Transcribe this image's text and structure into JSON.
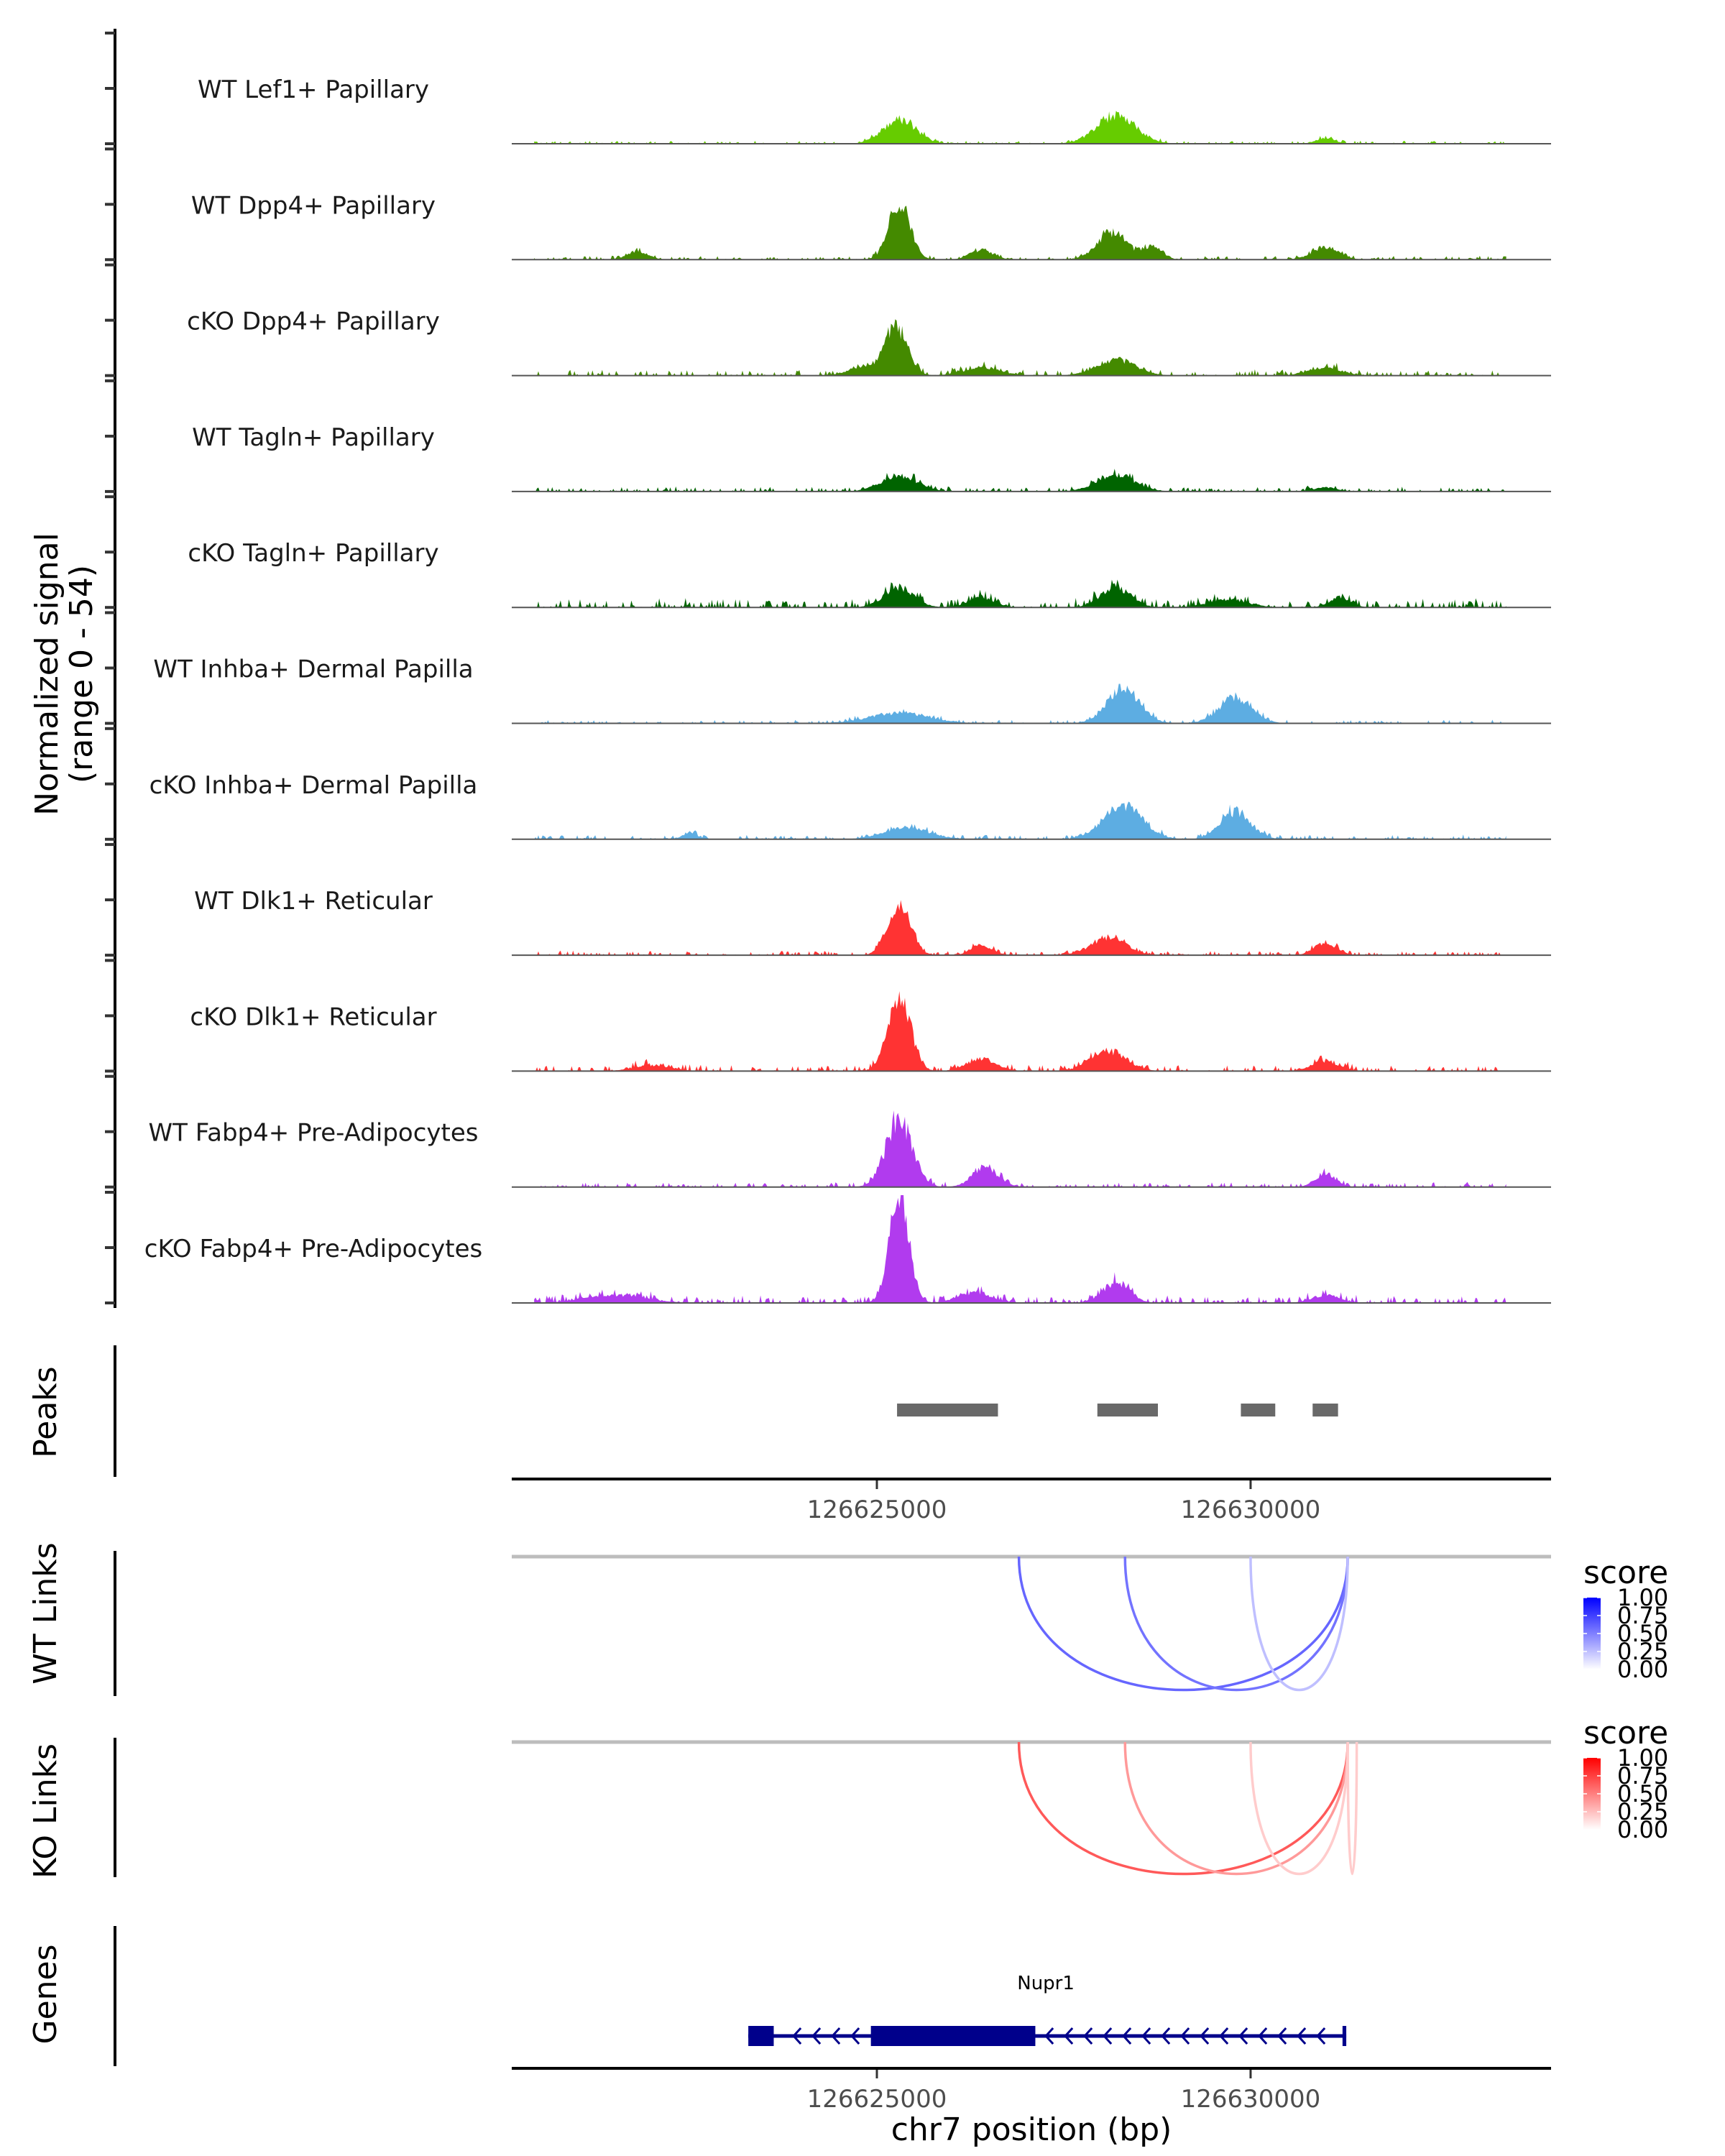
{
  "chart_data": {
    "type": "area",
    "title": "",
    "region": {
      "chrom": "chr7",
      "start": 126620115,
      "end": 126634020
    },
    "xlabel": "chr7 position (bp)",
    "x_ticks": [
      126625000,
      126630000
    ],
    "x_tick_labels": [
      "126625000",
      "126630000"
    ],
    "coverage": {
      "ylabel_line1": "Normalized signal",
      "ylabel_line2": "(range 0 - 54)",
      "ylim": [
        0,
        54
      ],
      "tracks": [
        {
          "name": "WT Lef1+ Papillary",
          "color": "#66CC00",
          "peaks": [
            [
              126625300,
              12,
              220
            ],
            [
              126628200,
              14,
              260
            ],
            [
              126631000,
              3,
              120
            ]
          ],
          "noise": 0.6
        },
        {
          "name": "WT Dpp4+ Papillary",
          "color": "#448A00",
          "peaks": [
            [
              126625300,
              29,
              140
            ],
            [
              126628150,
              14,
              200
            ],
            [
              126628700,
              7,
              120
            ],
            [
              126626400,
              5,
              150
            ],
            [
              126631000,
              6,
              180
            ],
            [
              126621800,
              4,
              140
            ]
          ],
          "noise": 0.8
        },
        {
          "name": "cKO Dpp4+ Papillary",
          "color": "#448A00",
          "peaks": [
            [
              126625250,
              25,
              150
            ],
            [
              126628200,
              8,
              260
            ],
            [
              126626400,
              4,
              250
            ],
            [
              126631000,
              4,
              220
            ],
            [
              126624800,
              4,
              200
            ]
          ],
          "noise": 1.2
        },
        {
          "name": "WT Tagln+ Papillary",
          "color": "#006400",
          "peaks": [
            [
              126625300,
              8,
              240
            ],
            [
              126628200,
              8,
              260
            ],
            [
              126631000,
              2,
              160
            ]
          ],
          "noise": 1.0
        },
        {
          "name": "cKO Tagln+ Papillary",
          "color": "#006400",
          "peaks": [
            [
              126625300,
              10,
              200
            ],
            [
              126628200,
              10,
              200
            ],
            [
              126631200,
              5,
              140
            ],
            [
              126626400,
              5,
              180
            ],
            [
              126629700,
              4,
              260
            ]
          ],
          "noise": 1.8
        },
        {
          "name": "WT Inhba+ Dermal Papilla",
          "color": "#5DADE2",
          "peaks": [
            [
              126628300,
              17,
              220
            ],
            [
              126629800,
              13,
              220
            ],
            [
              126625300,
              5,
              400
            ]
          ],
          "noise": 0.7
        },
        {
          "name": "cKO Inhba+ Dermal Papilla",
          "color": "#5DADE2",
          "peaks": [
            [
              126628300,
              17,
              260
            ],
            [
              126629800,
              14,
              200
            ],
            [
              126625400,
              6,
              300
            ],
            [
              126622500,
              3,
              100
            ]
          ],
          "noise": 0.9
        },
        {
          "name": "WT Dlk1+ Reticular",
          "color": "#FF3333",
          "peaks": [
            [
              126625300,
              27,
              150
            ],
            [
              126628100,
              9,
              230
            ],
            [
              126631000,
              6,
              150
            ],
            [
              126626400,
              5,
              140
            ]
          ],
          "noise": 0.9
        },
        {
          "name": "cKO Dlk1+ Reticular",
          "color": "#FF3333",
          "peaks": [
            [
              126625300,
              37,
              150
            ],
            [
              126628100,
              10,
              240
            ],
            [
              126631000,
              5,
              180
            ],
            [
              126626400,
              6,
              200
            ],
            [
              126622000,
              3,
              250
            ]
          ],
          "noise": 1.3
        },
        {
          "name": "WT Fabp4+ Pre-Adipocytes",
          "color": "#B13BEE",
          "peaks": [
            [
              126625300,
              33,
              180
            ],
            [
              126626450,
              10,
              170
            ],
            [
              126631000,
              7,
              130
            ]
          ],
          "noise": 1.0
        },
        {
          "name": "cKO Fabp4+ Pre-Adipocytes",
          "color": "#B13BEE",
          "peaks": [
            [
              126625300,
              54,
              130
            ],
            [
              126628200,
              10,
              180
            ],
            [
              126626300,
              5,
              220
            ],
            [
              126631000,
              4,
              180
            ],
            [
              126621500,
              4,
              400
            ]
          ],
          "noise": 1.5
        }
      ]
    },
    "peaks_track": {
      "label": "Peaks",
      "color": "#696969",
      "ranges": [
        [
          126625270,
          126626620
        ],
        [
          126627950,
          126628760
        ],
        [
          126629870,
          126630330
        ],
        [
          126630830,
          126631170
        ]
      ]
    },
    "links_tracks": [
      {
        "label": "WT Links",
        "legend_title": "score",
        "low_color": "#FFFFFF",
        "high_color": "#0000FF",
        "legend_ticks": [
          "1.00",
          "0.75",
          "0.50",
          "0.25",
          "0.00"
        ],
        "links": [
          {
            "start": 126626900,
            "end": 126631300,
            "score": 0.6
          },
          {
            "start": 126628320,
            "end": 126631300,
            "score": 0.55
          },
          {
            "start": 126630000,
            "end": 126631300,
            "score": 0.25
          }
        ]
      },
      {
        "label": "KO Links",
        "legend_title": "score",
        "low_color": "#FFFFFF",
        "high_color": "#FF0000",
        "legend_ticks": [
          "1.00",
          "0.75",
          "0.50",
          "0.25",
          "0.00"
        ],
        "links": [
          {
            "start": 126626900,
            "end": 126631300,
            "score": 0.65
          },
          {
            "start": 126628320,
            "end": 126631300,
            "score": 0.4
          },
          {
            "start": 126630000,
            "end": 126631300,
            "score": 0.2
          },
          {
            "start": 126631300,
            "end": 126631420,
            "score": 0.2
          }
        ]
      }
    ],
    "genes_track": {
      "label": "Genes",
      "color": "#00008B",
      "genes": [
        {
          "name": "Nupr1",
          "strand": "-",
          "start": 126623280,
          "end": 126631280,
          "exons": [
            [
              126623280,
              126623620
            ],
            [
              126624920,
              126627120
            ],
            [
              126631230,
              126631280
            ]
          ]
        }
      ]
    }
  }
}
